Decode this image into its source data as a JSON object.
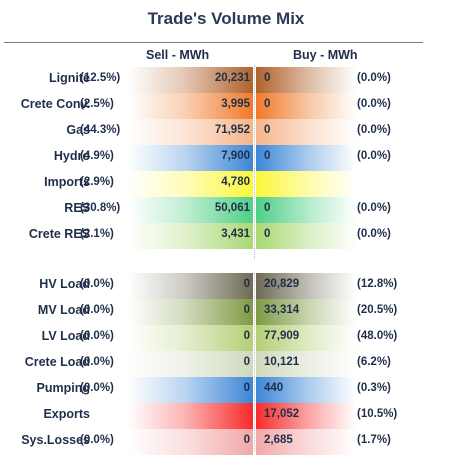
{
  "title": "Trade's Volume Mix",
  "headers": {
    "sell": "Sell - MWh",
    "buy": "Buy - MWh"
  },
  "rows": [
    {
      "label": "Lignite",
      "sell_pct": "(12.5%)",
      "sell": "20,231",
      "buy": "0",
      "buy_pct": "(0.0%)",
      "sell_color": "#b0622c",
      "buy_color": "#b0622c"
    },
    {
      "label": "Crete Conv.",
      "sell_pct": "(2.5%)",
      "sell": "3,995",
      "buy": "0",
      "buy_pct": "(0.0%)",
      "sell_color": "#f07a2a",
      "buy_color": "#f07a2a"
    },
    {
      "label": "Gas",
      "sell_pct": "(44.3%)",
      "sell": "71,952",
      "buy": "0",
      "buy_pct": "(0.0%)",
      "sell_color": "#f5b58c",
      "buy_color": "#f5b58c"
    },
    {
      "label": "Hydro",
      "sell_pct": "(4.9%)",
      "sell": "7,900",
      "buy": "0",
      "buy_pct": "(0.0%)",
      "sell_color": "#3d86d6",
      "buy_color": "#3d86d6"
    },
    {
      "label": "Imports",
      "sell_pct": "(2.9%)",
      "sell": "4,780",
      "buy": "",
      "buy_pct": "",
      "sell_color": "#fbf73b",
      "buy_color": "#fbf73b"
    },
    {
      "label": "RES",
      "sell_pct": "(30.8%)",
      "sell": "50,061",
      "buy": "0",
      "buy_pct": "(0.0%)",
      "sell_color": "#4fcf86",
      "buy_color": "#4fcf86"
    },
    {
      "label": "Crete RES",
      "sell_pct": "(2.1%)",
      "sell": "3,431",
      "buy": "0",
      "buy_pct": "(0.0%)",
      "sell_color": "#a8d873",
      "buy_color": "#a8d873"
    },
    {
      "label": "HV Load",
      "sell_pct": "(0.0%)",
      "sell": "0",
      "buy": "20,829",
      "buy_pct": "(12.8%)",
      "sell_color": "#6e6a55",
      "buy_color": "#6e6a55"
    },
    {
      "label": "MV Load",
      "sell_pct": "(0.0%)",
      "sell": "0",
      "buy": "33,314",
      "buy_pct": "(20.5%)",
      "sell_color": "#7f9a45",
      "buy_color": "#7f9a45"
    },
    {
      "label": "LV Load",
      "sell_pct": "(0.0%)",
      "sell": "0",
      "buy": "77,909",
      "buy_pct": "(48.0%)",
      "sell_color": "#b4cf76",
      "buy_color": "#b4cf76"
    },
    {
      "label": "Crete Load",
      "sell_pct": "(0.0%)",
      "sell": "0",
      "buy": "10,121",
      "buy_pct": "(6.2%)",
      "sell_color": "#cfd9bd",
      "buy_color": "#cfd9bd"
    },
    {
      "label": "Pumping",
      "sell_pct": "(0.0%)",
      "sell": "0",
      "buy": "440",
      "buy_pct": "(0.3%)",
      "sell_color": "#3d86d6",
      "buy_color": "#3d86d6"
    },
    {
      "label": "Exports",
      "sell_pct": "",
      "sell": "",
      "buy": "17,052",
      "buy_pct": "(10.5%)",
      "sell_color": "#f72a2a",
      "buy_color": "#f72a2a"
    },
    {
      "label": "Sys.Losses",
      "sell_pct": "(0.0%)",
      "sell": "0",
      "buy": "2,685",
      "buy_pct": "(1.7%)",
      "sell_color": "#f2a8a8",
      "buy_color": "#f2a8a8"
    }
  ]
}
